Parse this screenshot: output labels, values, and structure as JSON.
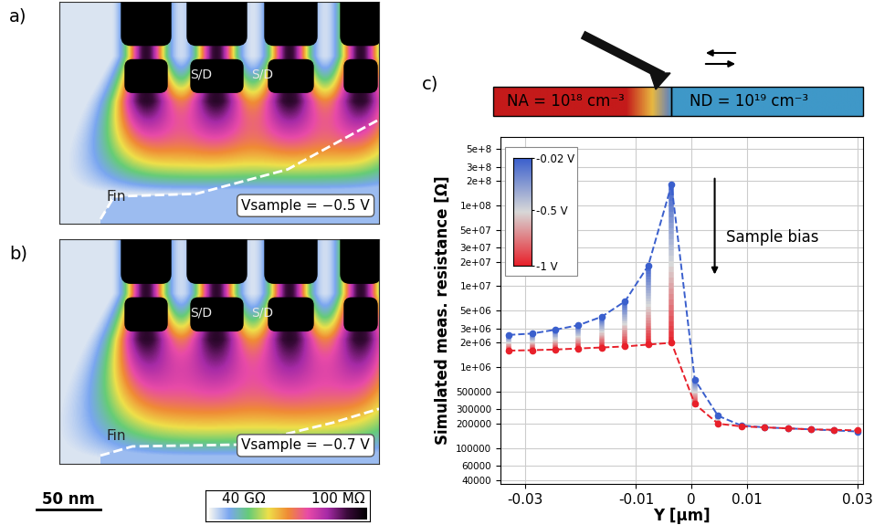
{
  "panels": [
    {
      "label": "a)",
      "sd_labels": [
        "S/D",
        "S/D"
      ],
      "fin_label": "Fin",
      "bias": "Vsample = −0.5 V"
    },
    {
      "label": "b)",
      "sd_labels": [
        "S/D",
        "S/D"
      ],
      "fin_label": "Fin",
      "bias": "Vsample = −0.7 V"
    }
  ],
  "resistance_scale": {
    "left": "40 GΩ",
    "right": "100 MΩ"
  },
  "scale_bar": "50 nm",
  "chart_data": {
    "type": "line",
    "title": "c)",
    "xlabel": "Y [µm]",
    "ylabel": "Simulated meas. resistance [Ω]",
    "log": "y",
    "grid": true,
    "marker": "o",
    "line_style": "dashed",
    "x": [
      -0.033,
      -0.0288,
      -0.0246,
      -0.0204,
      -0.0162,
      -0.012,
      -0.0078,
      -0.0036,
      0.0006,
      0.0048,
      0.009,
      0.0132,
      0.0174,
      0.0216,
      0.0258,
      0.03
    ],
    "series": [
      {
        "color": "#3a5fcd",
        "bias": -0.02,
        "values": [
          2500000,
          2600000,
          2900000,
          3300000,
          4200000,
          6500000,
          18000000,
          180000000,
          700000,
          250000,
          190000,
          180000,
          175000,
          170000,
          165000,
          160000
        ]
      },
      {
        "color": "#e8202a",
        "bias": -1,
        "values": [
          1600000,
          1620000,
          1650000,
          1700000,
          1750000,
          1800000,
          1900000,
          2000000,
          350000,
          200000,
          185000,
          180000,
          175000,
          170000,
          168000,
          165000
        ]
      }
    ],
    "xlim": [
      -0.0345,
      0.031
    ],
    "ylim": [
      36000,
      700000000
    ],
    "xticks": [
      -0.03,
      -0.01,
      0,
      0.01,
      0.03
    ],
    "yticks": [
      {
        "value": 40000,
        "label": "40000"
      },
      {
        "value": 60000,
        "label": "60000"
      },
      {
        "value": 100000,
        "label": "100000"
      },
      {
        "value": 200000,
        "label": "200000"
      },
      {
        "value": 300000,
        "label": "300000"
      },
      {
        "value": 500000,
        "label": "500000"
      },
      {
        "value": 1000000,
        "label": "1e+06"
      },
      {
        "value": 2000000,
        "label": "2e+06"
      },
      {
        "value": 3000000,
        "label": "3e+06"
      },
      {
        "value": 5000000,
        "label": "5e+06"
      },
      {
        "value": 10000000,
        "label": "1e+07"
      },
      {
        "value": 20000000,
        "label": "2e+07"
      },
      {
        "value": 30000000,
        "label": "3e+07"
      },
      {
        "value": 50000000,
        "label": "5e+07"
      },
      {
        "value": 100000000,
        "label": "1e+08"
      },
      {
        "value": 200000000,
        "label": "2e+8"
      },
      {
        "value": 300000000,
        "label": "3e+8"
      },
      {
        "value": 500000000,
        "label": "5e+8"
      }
    ],
    "colorbar": {
      "range": [
        -1,
        -0.02
      ],
      "ticks": [
        {
          "value": -0.02,
          "label": "-0.02 V"
        },
        {
          "value": -0.5,
          "label": "-0.5 V"
        },
        {
          "value": -1,
          "label": "-1 V"
        }
      ]
    },
    "annotation": "Sample bias",
    "schematic": {
      "left": "NA = 10¹⁸ cm⁻³",
      "right": "ND = 10¹⁹ cm⁻³"
    }
  }
}
